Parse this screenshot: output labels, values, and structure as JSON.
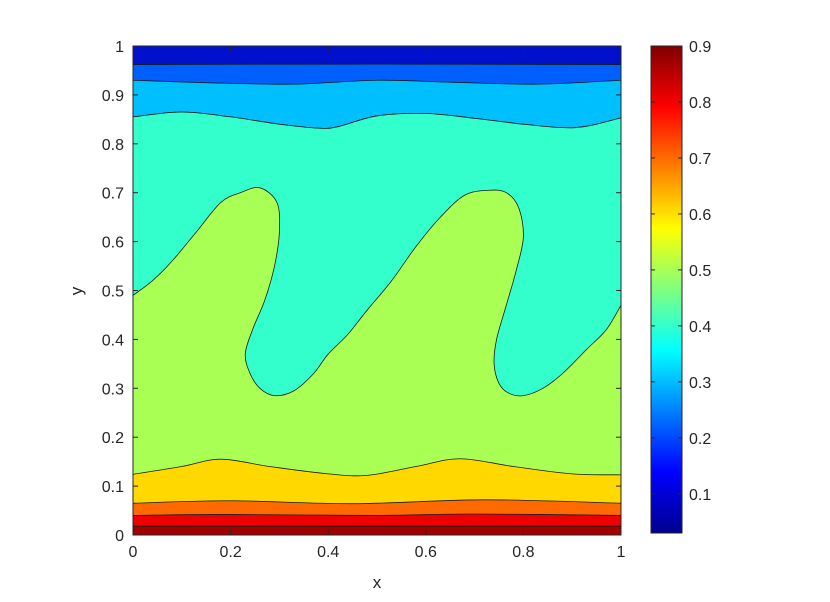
{
  "chart_data": {
    "type": "contour",
    "title": "",
    "xlabel": "x",
    "ylabel": "y",
    "xlim": [
      0,
      1
    ],
    "ylim": [
      0,
      1
    ],
    "xticks": [
      0,
      0.2,
      0.4,
      0.6,
      0.8,
      1
    ],
    "xtick_labels": [
      "0",
      "0.2",
      "0.4",
      "0.6",
      "0.8",
      "1"
    ],
    "yticks": [
      0,
      0.1,
      0.2,
      0.3,
      0.4,
      0.5,
      0.6,
      0.7,
      0.8,
      0.9,
      1
    ],
    "ytick_labels": [
      "0",
      "0.1",
      "0.2",
      "0.3",
      "0.4",
      "0.5",
      "0.6",
      "0.7",
      "0.8",
      "0.9",
      "1"
    ],
    "colormap": "jet",
    "colorbar": {
      "range": [
        0.03,
        0.9
      ],
      "ticks": [
        0.1,
        0.2,
        0.3,
        0.4,
        0.5,
        0.6,
        0.7,
        0.8,
        0.9
      ],
      "tick_labels": [
        "0.1",
        "0.2",
        "0.3",
        "0.4",
        "0.5",
        "0.6",
        "0.7",
        "0.8",
        "0.9"
      ],
      "placement": "right"
    },
    "bands": [
      {
        "level": 0.88,
        "color": "#a10000",
        "upper": [
          [
            0,
            0.018
          ],
          [
            0.5,
            0.018
          ],
          [
            1,
            0.018
          ]
        ]
      },
      {
        "level": 0.8,
        "color": "#ee0000",
        "upper": [
          [
            0,
            0.04
          ],
          [
            0.2,
            0.042
          ],
          [
            0.5,
            0.04
          ],
          [
            0.7,
            0.043
          ],
          [
            1,
            0.04
          ]
        ]
      },
      {
        "level": 0.7,
        "color": "#ff6a00",
        "upper": [
          [
            0,
            0.065
          ],
          [
            0.2,
            0.07
          ],
          [
            0.45,
            0.064
          ],
          [
            0.72,
            0.072
          ],
          [
            1,
            0.065
          ]
        ]
      },
      {
        "level": 0.6,
        "color": "#ffd800",
        "upper": [
          [
            0,
            0.124
          ],
          [
            0.1,
            0.14
          ],
          [
            0.18,
            0.155
          ],
          [
            0.28,
            0.14
          ],
          [
            0.4,
            0.125
          ],
          [
            0.48,
            0.122
          ],
          [
            0.58,
            0.14
          ],
          [
            0.67,
            0.156
          ],
          [
            0.78,
            0.14
          ],
          [
            0.9,
            0.125
          ],
          [
            1,
            0.123
          ]
        ]
      },
      {
        "level": 0.5,
        "color": "#aaff55"
      },
      {
        "level": 0.4,
        "color": "#33ffcc",
        "upper": [
          [
            0,
            0.855
          ],
          [
            0.1,
            0.865
          ],
          [
            0.2,
            0.855
          ],
          [
            0.3,
            0.84
          ],
          [
            0.38,
            0.832
          ],
          [
            0.42,
            0.835
          ],
          [
            0.5,
            0.857
          ],
          [
            0.6,
            0.862
          ],
          [
            0.7,
            0.852
          ],
          [
            0.8,
            0.84
          ],
          [
            0.88,
            0.833
          ],
          [
            0.93,
            0.836
          ],
          [
            1,
            0.853
          ]
        ]
      },
      {
        "level": 0.3,
        "color": "#00bfff",
        "upper": [
          [
            0,
            0.93
          ],
          [
            0.15,
            0.925
          ],
          [
            0.33,
            0.922
          ],
          [
            0.5,
            0.93
          ],
          [
            0.65,
            0.926
          ],
          [
            0.83,
            0.922
          ],
          [
            1,
            0.93
          ]
        ]
      },
      {
        "level": 0.2,
        "color": "#0060ff",
        "upper": [
          [
            0,
            0.962
          ],
          [
            0.5,
            0.963
          ],
          [
            1,
            0.962
          ]
        ]
      },
      {
        "level": 0.1,
        "color": "#0010cc",
        "upper": [
          [
            0,
            1
          ],
          [
            1,
            1
          ]
        ]
      }
    ],
    "fingers": [
      {
        "level": 0.5,
        "color": "#aaff55",
        "boundary": [
          [
            0,
            0.49
          ],
          [
            0.04,
            0.52
          ],
          [
            0.08,
            0.56
          ],
          [
            0.13,
            0.62
          ],
          [
            0.18,
            0.68
          ],
          [
            0.22,
            0.7
          ],
          [
            0.26,
            0.71
          ],
          [
            0.295,
            0.68
          ],
          [
            0.3,
            0.62
          ],
          [
            0.29,
            0.55
          ],
          [
            0.27,
            0.48
          ],
          [
            0.245,
            0.42
          ],
          [
            0.23,
            0.37
          ],
          [
            0.24,
            0.33
          ],
          [
            0.26,
            0.3
          ],
          [
            0.29,
            0.285
          ],
          [
            0.33,
            0.295
          ],
          [
            0.37,
            0.33
          ],
          [
            0.4,
            0.37
          ],
          [
            0.44,
            0.41
          ],
          [
            0.48,
            0.46
          ],
          [
            0.53,
            0.52
          ],
          [
            0.58,
            0.59
          ],
          [
            0.63,
            0.65
          ],
          [
            0.68,
            0.695
          ],
          [
            0.73,
            0.705
          ],
          [
            0.765,
            0.7
          ],
          [
            0.79,
            0.67
          ],
          [
            0.8,
            0.61
          ],
          [
            0.785,
            0.54
          ],
          [
            0.765,
            0.47
          ],
          [
            0.745,
            0.4
          ],
          [
            0.74,
            0.35
          ],
          [
            0.75,
            0.31
          ],
          [
            0.77,
            0.29
          ],
          [
            0.8,
            0.285
          ],
          [
            0.84,
            0.3
          ],
          [
            0.88,
            0.33
          ],
          [
            0.93,
            0.38
          ],
          [
            0.97,
            0.42
          ],
          [
            1,
            0.47
          ]
        ]
      }
    ]
  }
}
